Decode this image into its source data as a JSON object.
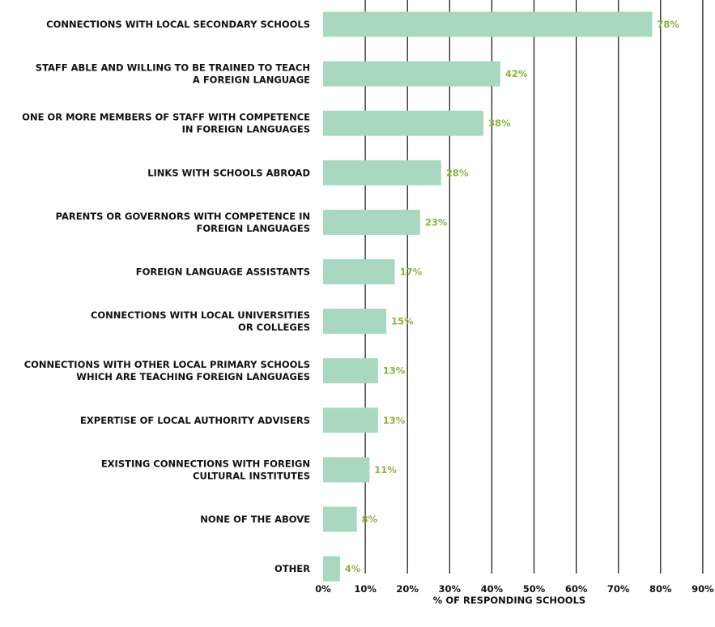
{
  "chart_data": {
    "type": "bar",
    "orientation": "horizontal",
    "categories": [
      [
        "CONNECTIONS WITH LOCAL SECONDARY SCHOOLS"
      ],
      [
        "STAFF ABLE AND WILLING TO BE TRAINED TO TEACH",
        "A FOREIGN LANGUAGE"
      ],
      [
        "ONE OR MORE MEMBERS OF STAFF WITH COMPETENCE",
        "IN FOREIGN LANGUAGES"
      ],
      [
        "LINKS WITH SCHOOLS ABROAD"
      ],
      [
        "PARENTS OR GOVERNORS WITH COMPETENCE IN",
        "FOREIGN LANGUAGES"
      ],
      [
        "FOREIGN LANGUAGE ASSISTANTS"
      ],
      [
        "CONNECTIONS WITH LOCAL UNIVERSITIES",
        "OR COLLEGES"
      ],
      [
        "CONNECTIONS WITH OTHER LOCAL PRIMARY SCHOOLS",
        "WHICH ARE TEACHING FOREIGN LANGUAGES"
      ],
      [
        "EXPERTISE OF LOCAL AUTHORITY ADVISERS"
      ],
      [
        "EXISTING CONNECTIONS WITH FOREIGN",
        "CULTURAL INSTITUTES"
      ],
      [
        "NONE OF THE ABOVE"
      ],
      [
        "OTHER"
      ]
    ],
    "values": [
      78,
      42,
      38,
      28,
      23,
      17,
      15,
      13,
      13,
      11,
      8,
      4
    ],
    "value_labels": [
      "78%",
      "42%",
      "38%",
      "28%",
      "23%",
      "17%",
      "15%",
      "13%",
      "13%",
      "11%",
      "8%",
      "4%"
    ],
    "x_ticks": [
      "0%",
      "10%",
      "20%",
      "30%",
      "40%",
      "50%",
      "60%",
      "70%",
      "80%",
      "90%"
    ],
    "xlabel": "% OF RESPONDING SCHOOLS",
    "ylabel": "",
    "xlim": [
      0,
      90
    ],
    "grid": "vertical",
    "colors": {
      "bar": "#a8d8c0",
      "value_label": "#8cb43c",
      "gridline": "#111111",
      "text": "#111111"
    }
  }
}
